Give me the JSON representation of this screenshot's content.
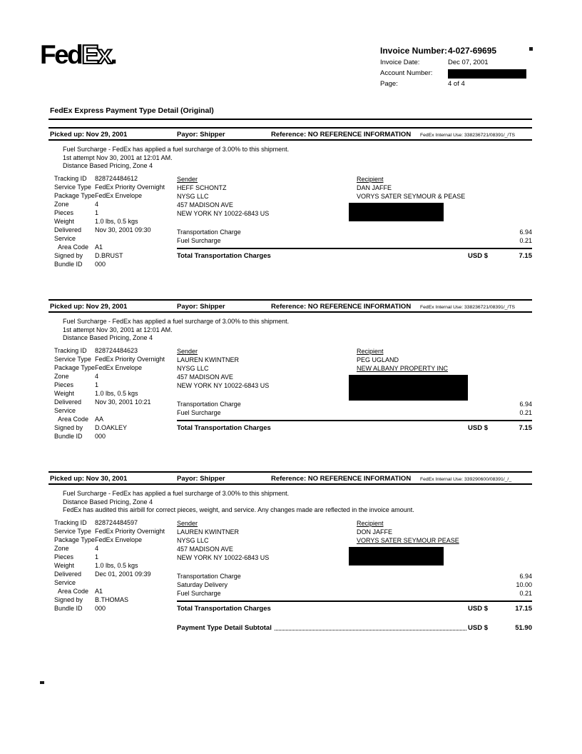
{
  "invoice_header": {
    "logo_fed": "Fed",
    "logo_ex": "Ex",
    "logo_dot": ".",
    "invoice_number_label": "Invoice Number:",
    "invoice_number_value": "4-027-69695",
    "invoice_date_label": "Invoice Date:",
    "invoice_date_value": "Dec 07, 2001",
    "account_number_label": "Account Number:",
    "account_number_redacted": true,
    "page_label": "Page:",
    "page_value": "4 of 4"
  },
  "document_title": "FedEx Express Payment Type Detail (Original)",
  "shipments": [
    {
      "picked_up": "Picked up: Nov 29, 2001",
      "payor": "Payor: Shipper",
      "reference": "Reference: NO REFERENCE INFORMATION",
      "internal_use": "FedEx Internal Use: 338236721/08391/_/TS",
      "notes": [
        "Fuel Surcharge - FedEx has applied a fuel surcharge of 3.00% to this shipment.",
        "1st attempt Nov 30, 2001 at 12:01 AM.",
        "Distance Based Pricing, Zone 4"
      ],
      "details": [
        {
          "label": "Tracking ID",
          "value": "828724484612"
        },
        {
          "label": "Service Type",
          "value": "FedEx Priority Overnight"
        },
        {
          "label": "Package Type",
          "value": "FedEx Envelope"
        },
        {
          "label": "Zone",
          "value": "4"
        },
        {
          "label": "Pieces",
          "value": "1"
        },
        {
          "label": "Weight",
          "value": "1.0 lbs, 0.5 kgs"
        },
        {
          "label": "Delivered",
          "value": "Nov 30, 2001 09:30"
        },
        {
          "label": "Service",
          "value": ""
        },
        {
          "label": "Area Code",
          "value": "A1",
          "indent": true
        },
        {
          "label": "Signed by",
          "value": "D.BRUST"
        },
        {
          "label": "Bundle ID",
          "value": "000"
        }
      ],
      "sender_label": "Sender",
      "sender_lines": [
        "HEFF SCHONTZ",
        "NYSG LLC",
        "457 MADISON AVE",
        "NEW YORK NY 10022-6843  US"
      ],
      "recipient_label": "Recipient",
      "recipient_lines": [
        "DAN JAFFE",
        "VORYS SATER SEYMOUR & PEASE"
      ],
      "recipient_redacted": true,
      "charges": [
        {
          "label": "Transportation Charge",
          "amount": "6.94"
        },
        {
          "label": "Fuel Surcharge",
          "amount": "0.21"
        }
      ],
      "total_label": "Total Transportation Charges",
      "total_currency": "USD $",
      "total_amount": "7.15"
    },
    {
      "picked_up": "Picked up: Nov 29, 2001",
      "payor": "Payor: Shipper",
      "reference": "Reference: NO REFERENCE INFORMATION",
      "internal_use": "FedEx Internal Use: 338236721/08391/_/TS",
      "notes": [
        "Fuel Surcharge - FedEx has applied a fuel surcharge of 3.00% to this shipment.",
        "1st attempt Nov 30, 2001 at 12:01 AM.",
        "Distance Based Pricing, Zone 4"
      ],
      "details": [
        {
          "label": "Tracking ID",
          "value": "828724484623"
        },
        {
          "label": "Service Type",
          "value": "FedEx Priority Overnight"
        },
        {
          "label": "Package Type",
          "value": "FedEx Envelope"
        },
        {
          "label": "Zone",
          "value": "4"
        },
        {
          "label": "Pieces",
          "value": "1"
        },
        {
          "label": "Weight",
          "value": "1.0 lbs, 0.5 kgs"
        },
        {
          "label": "Delivered",
          "value": "Nov 30, 2001 10:21"
        },
        {
          "label": "Service",
          "value": ""
        },
        {
          "label": "Area Code",
          "value": "AA",
          "indent": true
        },
        {
          "label": "Signed by",
          "value": "D.OAKLEY"
        },
        {
          "label": "Bundle ID",
          "value": "000"
        }
      ],
      "sender_label": "Sender",
      "sender_lines": [
        "LAUREN KWINTNER",
        "NYSG LLC",
        "457 MADISON AVE",
        "NEW YORK NY 10022-6843  US"
      ],
      "recipient_label": "Recipient",
      "recipient_lines": [
        "PEG UGLAND",
        "NEW ALBANY PROPERTY INC"
      ],
      "recipient_redacted": true,
      "charges": [
        {
          "label": "Transportation Charge",
          "amount": "6.94"
        },
        {
          "label": "Fuel Surcharge",
          "amount": "0.21"
        }
      ],
      "total_label": "Total Transportation Charges",
      "total_currency": "USD $",
      "total_amount": "7.15"
    },
    {
      "picked_up": "Picked up: Nov 30, 2001",
      "payor": "Payor: Shipper",
      "reference": "Reference: NO REFERENCE INFORMATION",
      "internal_use": "FedEx Internal Use: 339290600/08391/_/_",
      "notes": [
        "Fuel Surcharge - FedEx has applied a fuel surcharge of 3.00% to this shipment.",
        "Distance Based Pricing, Zone 4",
        "FedEx has audited this airbill for correct pieces, weight, and service. Any changes made are reflected in the invoice amount."
      ],
      "details": [
        {
          "label": "Tracking ID",
          "value": "828724484597"
        },
        {
          "label": "Service Type",
          "value": "FedEx Priority Overnight"
        },
        {
          "label": "Package Type",
          "value": "FedEx Envelope"
        },
        {
          "label": "Zone",
          "value": "4"
        },
        {
          "label": "Pieces",
          "value": "1"
        },
        {
          "label": "Weight",
          "value": "1.0 lbs, 0.5 kgs"
        },
        {
          "label": "Delivered",
          "value": "Dec 01, 2001 09:39"
        },
        {
          "label": "Service",
          "value": ""
        },
        {
          "label": "Area Code",
          "value": "A1",
          "indent": true
        },
        {
          "label": "Signed by",
          "value": "B.THOMAS"
        },
        {
          "label": "Bundle ID",
          "value": "000"
        }
      ],
      "sender_label": "Sender",
      "sender_lines": [
        "LAUREN KWINTNER",
        "NYSG LLC",
        "457 MADISON AVE",
        "NEW YORK NY 10022-6843  US"
      ],
      "recipient_label": "Recipient",
      "recipient_lines": [
        "DON JAFFE",
        "VORYS SATER SEYMOUR PEASE"
      ],
      "recipient_redacted": true,
      "charges": [
        {
          "label": "Transportation Charge",
          "amount": "6.94"
        },
        {
          "label": "Saturday Delivery",
          "amount": "10.00"
        },
        {
          "label": "Fuel Surcharge",
          "amount": "0.21"
        }
      ],
      "total_label": "Total Transportation Charges",
      "total_currency": "USD $",
      "total_amount": "17.15"
    }
  ],
  "subtotal": {
    "label": "Payment Type Detail Subtotal",
    "currency_label": "USD $",
    "amount": "51.90"
  }
}
